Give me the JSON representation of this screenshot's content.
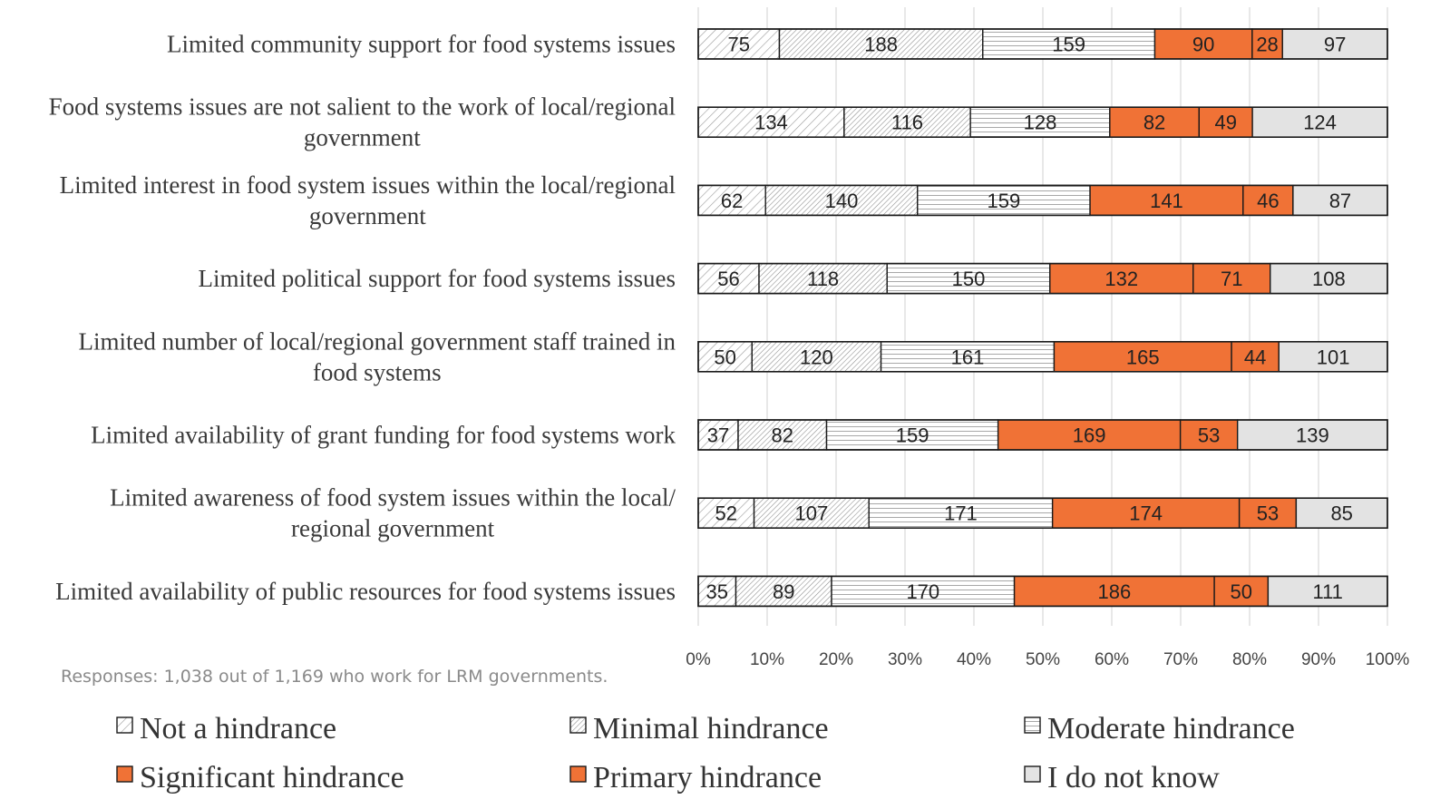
{
  "chart_data": {
    "type": "bar",
    "orientation": "horizontal",
    "stacked": "percent",
    "categories": [
      "Limited community support for food systems issues",
      "Food systems issues are not salient to the work of local/regional government",
      "Limited interest in food system issues within the local/regional government",
      "Limited political support for food systems issues",
      "Limited number of local/regional government staff trained in food systems",
      "Limited availability of grant funding for food systems work",
      "Limited awareness of food system issues within the local/ regional government",
      "Limited availability of public resources for food systems issues"
    ],
    "category_lines": [
      [
        "Limited community support for food systems issues"
      ],
      [
        "Food systems issues are not salient to the work of local/regional",
        "government"
      ],
      [
        "Limited interest in food system issues within the local/regional",
        "government"
      ],
      [
        "Limited political support for food systems issues"
      ],
      [
        "Limited number of local/regional government staff trained in",
        "food systems"
      ],
      [
        "Limited availability of grant funding for food systems work"
      ],
      [
        "Limited awareness of food system issues within the local/",
        "regional government"
      ],
      [
        "Limited availability of public resources for food systems issues"
      ]
    ],
    "series": [
      {
        "name": "Not a hindrance",
        "values": [
          75,
          134,
          62,
          56,
          50,
          37,
          52,
          35
        ],
        "pattern": "diag-light"
      },
      {
        "name": "Minimal hindrance",
        "values": [
          188,
          116,
          140,
          118,
          120,
          82,
          107,
          89
        ],
        "pattern": "diag-dense"
      },
      {
        "name": "Moderate hindrance",
        "values": [
          159,
          128,
          159,
          150,
          161,
          159,
          171,
          170
        ],
        "pattern": "horizontal"
      },
      {
        "name": "Significant hindrance",
        "values": [
          90,
          82,
          141,
          132,
          165,
          169,
          174,
          186
        ],
        "color": "#f07236"
      },
      {
        "name": "Primary hindrance",
        "values": [
          28,
          49,
          46,
          71,
          44,
          53,
          53,
          50
        ],
        "color": "#f07236"
      },
      {
        "name": "I do not know",
        "values": [
          97,
          124,
          87,
          108,
          101,
          139,
          85,
          111
        ],
        "color": "#e3e3e3"
      }
    ],
    "x_ticks": [
      "0%",
      "10%",
      "20%",
      "30%",
      "40%",
      "50%",
      "60%",
      "70%",
      "80%",
      "90%",
      "100%"
    ],
    "xlim": [
      0,
      100
    ],
    "grid": true,
    "legend_position": "bottom",
    "note": "Responses: 1,038 out of 1,169 who work for LRM governments."
  }
}
